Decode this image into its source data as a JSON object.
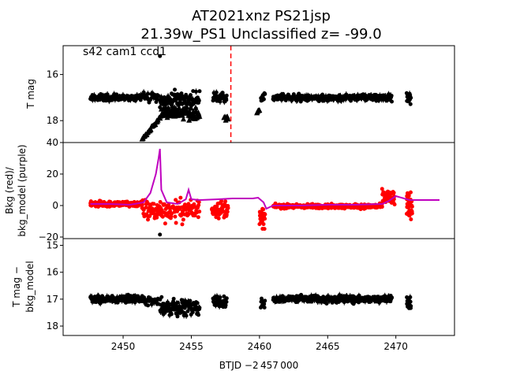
{
  "title_lines": [
    "AT2021xnz  PS21jsp",
    "21.39w_PS1 Unclassified z= -99.0"
  ],
  "annotation": "s42 cam1 ccd1",
  "xlabel": "BTJD −2 457 000",
  "colors": {
    "points": "#000000",
    "bkg": "#ff0000",
    "model": "#bf00bf",
    "marker": "#ff0000"
  },
  "chart_data": [
    {
      "type": "scatter",
      "ylabel": "T mag",
      "xlim": [
        2445.6,
        2474.3
      ],
      "ylim": [
        18.95,
        14.75
      ],
      "x_ticks": [],
      "y_ticks": [
        16,
        18
      ],
      "vertical_marker": {
        "x": 2457.9,
        "style": "dashed",
        "color": "#ff0000"
      },
      "series": [
        {
          "marker": "circle",
          "color": "#000000",
          "segments": [
            {
              "x0": 2447.6,
              "x1": 2451.4,
              "center": 17.0,
              "spread": 0.2,
              "n": 160
            },
            {
              "x0": 2451.5,
              "x1": 2452.6,
              "center": 17.0,
              "spread": 0.3,
              "n": 25
            },
            {
              "x0": 2452.7,
              "x1": 2455.6,
              "center": 17.15,
              "spread": 0.6,
              "n": 120
            },
            {
              "x0": 2456.6,
              "x1": 2457.6,
              "center": 17.0,
              "spread": 0.3,
              "n": 40
            },
            {
              "x0": 2460.1,
              "x1": 2460.4,
              "center": 17.0,
              "spread": 0.3,
              "n": 12
            },
            {
              "x0": 2461.0,
              "x1": 2469.7,
              "center": 17.0,
              "spread": 0.2,
              "n": 340
            },
            {
              "x0": 2470.8,
              "x1": 2471.1,
              "center": 17.0,
              "spread": 0.35,
              "n": 18
            }
          ]
        },
        {
          "marker": "triangle",
          "color": "#000000",
          "segments": [
            {
              "x0": 2451.4,
              "x1": 2452.8,
              "start": 18.8,
              "end": 17.8,
              "n": 30
            },
            {
              "x0": 2452.8,
              "x1": 2455.6,
              "center": 17.7,
              "spread": 0.35,
              "n": 70
            },
            {
              "x0": 2457.4,
              "x1": 2457.7,
              "center": 17.9,
              "spread": 0.15,
              "n": 6
            },
            {
              "x0": 2459.8,
              "x1": 2460.0,
              "center": 17.6,
              "spread": 0.1,
              "n": 5
            }
          ]
        }
      ]
    },
    {
      "type": "line",
      "ylabel": "Bkg (red)/ bkg_model (purple)",
      "xlim": [
        2445.6,
        2474.3
      ],
      "ylim": [
        -21,
        40
      ],
      "x_ticks": [],
      "y_ticks": [
        40,
        20,
        0,
        -20
      ],
      "series": [
        {
          "name": "Bkg",
          "marker": "circle",
          "color": "#ff0000",
          "segments": [
            {
              "x0": 2447.6,
              "x1": 2451.4,
              "center": 1,
              "spread": 2.5,
              "n": 220
            },
            {
              "x0": 2451.4,
              "x1": 2455.6,
              "center": -3,
              "spread": 10,
              "n": 140
            },
            {
              "x0": 2456.5,
              "x1": 2457.7,
              "center": -2,
              "spread": 8,
              "n": 60
            },
            {
              "x0": 2460.0,
              "x1": 2460.4,
              "center": -8,
              "spread": 9,
              "n": 25
            },
            {
              "x0": 2461.0,
              "x1": 2469.0,
              "center": -0.5,
              "spread": 2,
              "n": 420
            },
            {
              "x0": 2469.0,
              "x1": 2469.9,
              "center": 5,
              "spread": 8,
              "n": 50
            },
            {
              "x0": 2470.8,
              "x1": 2471.2,
              "center": 0,
              "spread": 12,
              "n": 40
            }
          ]
        },
        {
          "name": "bkg_model",
          "color": "#bf00bf",
          "x": [
            2447.6,
            2449,
            2450.5,
            2451.5,
            2452.0,
            2452.4,
            2452.6,
            2452.7,
            2452.8,
            2453.2,
            2454.0,
            2454.6,
            2454.8,
            2455.0,
            2455.6,
            2457,
            2458,
            2459.5,
            2459.9,
            2460.3,
            2460.5,
            2461,
            2463,
            2465,
            2467,
            2469,
            2469.5,
            2470,
            2471,
            2473.2
          ],
          "y": [
            1,
            1,
            0.5,
            2,
            8,
            20,
            30,
            36,
            10,
            2,
            1,
            4,
            10,
            4,
            3.5,
            4,
            4.5,
            4.5,
            5,
            2,
            -2,
            0,
            0,
            0.5,
            0.5,
            1,
            3,
            6,
            3.5,
            3.5
          ]
        }
      ]
    },
    {
      "type": "scatter",
      "ylabel": "T mag − bkg_model",
      "xlim": [
        2445.6,
        2474.3
      ],
      "ylim": [
        18.35,
        14.75
      ],
      "x_ticks": [
        2450,
        2455,
        2460,
        2465,
        2470
      ],
      "y_ticks": [
        15,
        16,
        17,
        18
      ],
      "series": [
        {
          "marker": "circle",
          "color": "#000000",
          "segments": [
            {
              "x0": 2447.6,
              "x1": 2451.4,
              "center": 17.0,
              "spread": 0.2,
              "n": 160
            },
            {
              "x0": 2451.5,
              "x1": 2452.6,
              "center": 17.1,
              "spread": 0.35,
              "n": 25
            },
            {
              "x0": 2452.7,
              "x1": 2455.6,
              "center": 17.3,
              "spread": 0.5,
              "n": 120
            },
            {
              "x0": 2456.6,
              "x1": 2457.6,
              "center": 17.1,
              "spread": 0.3,
              "n": 40
            },
            {
              "x0": 2460.1,
              "x1": 2460.4,
              "center": 17.2,
              "spread": 0.4,
              "n": 12
            },
            {
              "x0": 2461.0,
              "x1": 2469.7,
              "center": 17.0,
              "spread": 0.2,
              "n": 340
            },
            {
              "x0": 2470.8,
              "x1": 2471.1,
              "center": 17.2,
              "spread": 0.4,
              "n": 18
            }
          ]
        }
      ]
    }
  ]
}
